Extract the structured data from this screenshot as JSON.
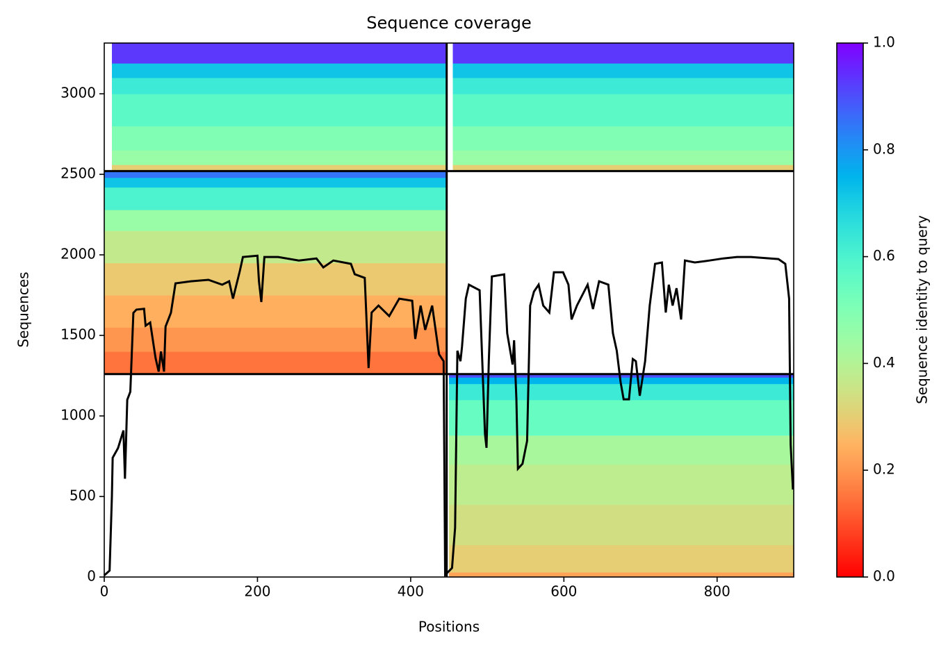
{
  "chart_data": {
    "type": "coverage",
    "title": "Sequence coverage",
    "x_label": "Positions",
    "y_label": "Sequences",
    "xlim": [
      0,
      900
    ],
    "ylim": [
      0,
      3315
    ],
    "xticks": [
      0,
      200,
      400,
      600,
      800
    ],
    "yticks": [
      0,
      500,
      1000,
      1500,
      2000,
      2500,
      3000
    ],
    "colormap": "rainbow_r",
    "colorbar_label": "Sequence identity to query",
    "clim": [
      0,
      1
    ],
    "cticks": [
      {
        "value": 0,
        "label": "0.0"
      },
      0.2,
      0.4,
      0.6,
      0.8,
      {
        "value": 1,
        "label": "1.0"
      }
    ],
    "boundaries": {
      "x": [
        447
      ],
      "y": [
        1260,
        2520
      ]
    },
    "line_color": "#000000",
    "blocks": [
      {
        "x": [
          10,
          447
        ],
        "bands": [
          {
            "y0": 2520,
            "y1": 2560,
            "identity": 0.3
          },
          {
            "y0": 2560,
            "y1": 2650,
            "identity": 0.45
          },
          {
            "y0": 2650,
            "y1": 2800,
            "identity": 0.5
          },
          {
            "y0": 2800,
            "y1": 3000,
            "identity": 0.57
          },
          {
            "y0": 3000,
            "y1": 3100,
            "identity": 0.63
          },
          {
            "y0": 3100,
            "y1": 3190,
            "identity": 0.72
          },
          {
            "y0": 3190,
            "y1": 3315,
            "identity": 0.93
          }
        ]
      },
      {
        "x": [
          455,
          900
        ],
        "bands": [
          {
            "y0": 2520,
            "y1": 2560,
            "identity": 0.3
          },
          {
            "y0": 2560,
            "y1": 2650,
            "identity": 0.45
          },
          {
            "y0": 2650,
            "y1": 2800,
            "identity": 0.5
          },
          {
            "y0": 2800,
            "y1": 3000,
            "identity": 0.57
          },
          {
            "y0": 3000,
            "y1": 3100,
            "identity": 0.63
          },
          {
            "y0": 3100,
            "y1": 3190,
            "identity": 0.72
          },
          {
            "y0": 3190,
            "y1": 3315,
            "identity": 0.93
          }
        ]
      },
      {
        "x": [
          0,
          447
        ],
        "bands": [
          {
            "y0": 1260,
            "y1": 1400,
            "identity": 0.15
          },
          {
            "y0": 1400,
            "y1": 1550,
            "identity": 0.2
          },
          {
            "y0": 1550,
            "y1": 1750,
            "identity": 0.24
          },
          {
            "y0": 1750,
            "y1": 1950,
            "identity": 0.29
          },
          {
            "y0": 1950,
            "y1": 2150,
            "identity": 0.37
          },
          {
            "y0": 2150,
            "y1": 2280,
            "identity": 0.45
          },
          {
            "y0": 2280,
            "y1": 2420,
            "identity": 0.6
          },
          {
            "y0": 2420,
            "y1": 2480,
            "identity": 0.72
          },
          {
            "y0": 2480,
            "y1": 2520,
            "identity": 0.85
          }
        ]
      },
      {
        "x": [
          450,
          900
        ],
        "bands": [
          {
            "y0": 0,
            "y1": 30,
            "identity": 0.22
          },
          {
            "y0": 30,
            "y1": 200,
            "identity": 0.3
          },
          {
            "y0": 200,
            "y1": 450,
            "identity": 0.34
          },
          {
            "y0": 450,
            "y1": 700,
            "identity": 0.38
          },
          {
            "y0": 700,
            "y1": 880,
            "identity": 0.42
          },
          {
            "y0": 880,
            "y1": 1100,
            "identity": 0.55
          },
          {
            "y0": 1100,
            "y1": 1200,
            "identity": 0.63
          },
          {
            "y0": 1200,
            "y1": 1240,
            "identity": 0.75
          },
          {
            "y0": 1240,
            "y1": 1260,
            "identity": 0.9
          }
        ]
      }
    ],
    "x": [
      0,
      7,
      10,
      11,
      18,
      25,
      27,
      30,
      34,
      38,
      42,
      52,
      54,
      60,
      67,
      71,
      74,
      78,
      80,
      87,
      93,
      113,
      136,
      154,
      163,
      168,
      177,
      181,
      200,
      202,
      205,
      209,
      227,
      254,
      277,
      286,
      299,
      322,
      327,
      340,
      345,
      349,
      358,
      372,
      385,
      402,
      406,
      413,
      419,
      428,
      437,
      443,
      445,
      454,
      458,
      461,
      465,
      467,
      472,
      476,
      490,
      497,
      499,
      502,
      506,
      522,
      526,
      533,
      535,
      538,
      540,
      546,
      552,
      556,
      561,
      567,
      573,
      581,
      587,
      599,
      606,
      610,
      617,
      631,
      638,
      646,
      658,
      664,
      669,
      674,
      678,
      685,
      690,
      694,
      699,
      706,
      712,
      719,
      728,
      733,
      737,
      742,
      747,
      753,
      758,
      771,
      790,
      808,
      826,
      844,
      880,
      889,
      894,
      896,
      899
    ],
    "values": [
      10,
      40,
      500,
      740,
      800,
      910,
      610,
      1100,
      1150,
      1640,
      1660,
      1665,
      1560,
      1580,
      1360,
      1275,
      1400,
      1275,
      1555,
      1640,
      1823,
      1836,
      1845,
      1815,
      1836,
      1728,
      1900,
      1987,
      1995,
      1836,
      1707,
      1987,
      1987,
      1965,
      1978,
      1922,
      1965,
      1944,
      1880,
      1857,
      1297,
      1642,
      1685,
      1620,
      1728,
      1715,
      1478,
      1685,
      1534,
      1685,
      1383,
      1340,
      13,
      56,
      306,
      1405,
      1340,
      1427,
      1728,
      1815,
      1780,
      888,
      802,
      1340,
      1866,
      1879,
      1513,
      1319,
      1470,
      1103,
      672,
      703,
      845,
      1685,
      1772,
      1815,
      1685,
      1642,
      1892,
      1892,
      1815,
      1599,
      1685,
      1815,
      1664,
      1836,
      1815,
      1513,
      1405,
      1211,
      1103,
      1103,
      1353,
      1340,
      1125,
      1340,
      1685,
      1944,
      1953,
      1642,
      1815,
      1685,
      1793,
      1599,
      1965,
      1953,
      1965,
      1978,
      1987,
      1987,
      1974,
      1944,
      1728,
      823,
      543
    ]
  }
}
